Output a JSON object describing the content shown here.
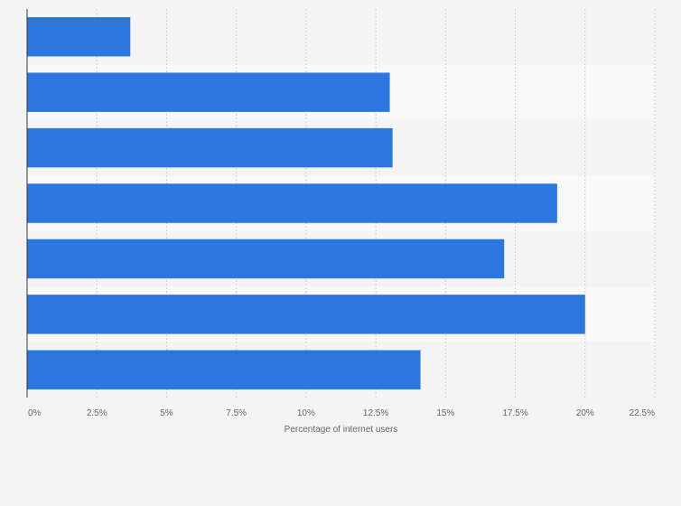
{
  "chart_data": {
    "type": "bar",
    "orientation": "horizontal",
    "categories": [
      "",
      "",
      "",
      "",
      "",
      "",
      ""
    ],
    "values": [
      3.7,
      13.0,
      13.1,
      19.0,
      17.1,
      20.0,
      14.1
    ],
    "xlabel": "Percentage of internet users",
    "ylabel": "",
    "xlim": [
      0,
      22.5
    ],
    "xticks": [
      0,
      2.5,
      5,
      7.5,
      10,
      12.5,
      15,
      17.5,
      20,
      22.5
    ],
    "xtick_labels": [
      "0%",
      "2.5%",
      "5%",
      "7.5%",
      "10%",
      "12.5%",
      "15%",
      "17.5%",
      "20%",
      "22.5%"
    ],
    "grid": true,
    "legend": "none"
  },
  "colors": {
    "bar": "#2b77de",
    "background": "#f4f4f4",
    "band_alt": "#f9f9f9",
    "grid": "#cfcfcf",
    "axis": "#333333",
    "text": "#666666"
  }
}
